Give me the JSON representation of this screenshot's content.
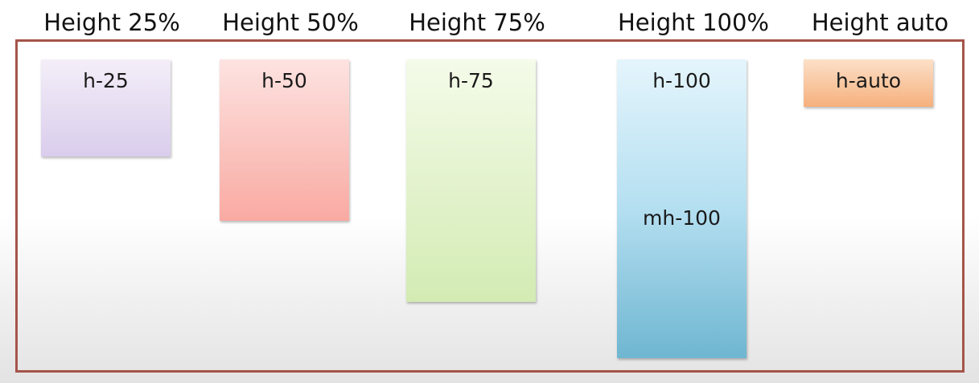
{
  "headings": {
    "h25": "Height 25%",
    "h50": "Height 50%",
    "h75": "Height 75%",
    "h100": "Height 100%",
    "hauto": "Height auto"
  },
  "boxes": {
    "h25": {
      "label": "h-25",
      "color": "#d9cdec"
    },
    "h50": {
      "label": "h-50",
      "color": "#f9aaa2"
    },
    "h75": {
      "label": "h-75",
      "color": "#d3ebb3"
    },
    "h100": {
      "label": "h-100",
      "secondary_label": "mh-100",
      "color": "#8fc8de"
    },
    "hauto": {
      "label": "h-auto",
      "color": "#f6b07d"
    }
  },
  "frame_color": "#a5544a"
}
